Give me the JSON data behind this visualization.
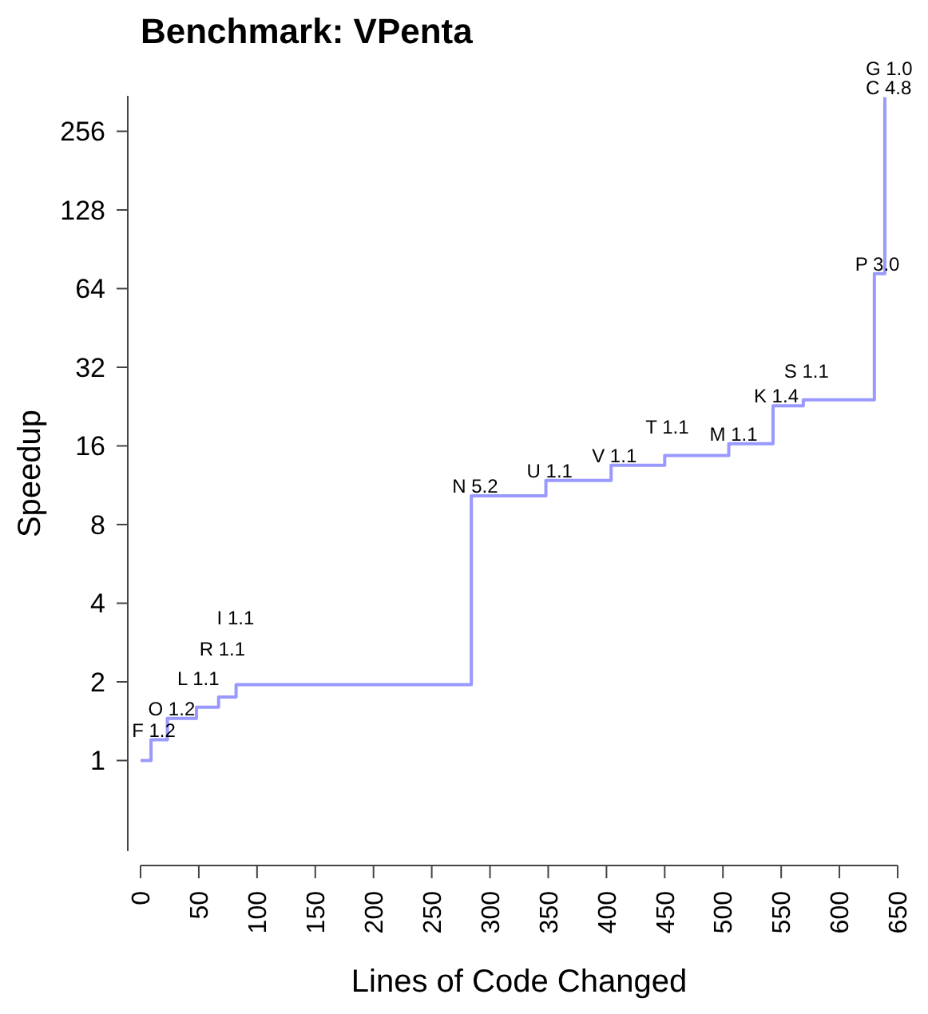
{
  "chart_data": {
    "type": "step",
    "title": "Benchmark: VPenta",
    "xlabel": "Lines of Code Changed",
    "ylabel": "Speedup",
    "log": true,
    "grid": false,
    "marker": "none",
    "line_style": "solid",
    "series": [
      {
        "color": "#9999ff",
        "x": [
          0,
          9,
          23,
          48,
          67,
          82,
          284,
          348,
          404,
          450,
          505,
          543,
          569,
          630,
          639
        ],
        "values": [
          1,
          1.2,
          1.45,
          1.6,
          1.75,
          1.95,
          10.3,
          11.8,
          13.5,
          14.7,
          16.3,
          22.8,
          24,
          73,
          346
        ]
      }
    ],
    "xlim": [
      0,
      650
    ],
    "xticks": [
      0,
      50,
      100,
      150,
      200,
      250,
      300,
      350,
      400,
      450,
      500,
      550,
      600,
      650
    ],
    "ylim": [
      0.45,
      350
    ],
    "yticks": [
      1,
      2,
      4,
      8,
      16,
      32,
      64,
      128,
      256
    ],
    "annotations": [
      {
        "text": "F 1.2",
        "x": 9,
        "y": 1.2
      },
      {
        "text": "O 1.2",
        "x": 23,
        "y": 1.45
      },
      {
        "text": "L 1.1",
        "x": 48,
        "y": 1.6
      },
      {
        "text": "R 1.1",
        "x": 67,
        "y": 1.75
      },
      {
        "text": "I 1.1",
        "x": 82,
        "y": 1.95
      },
      {
        "text": "N 5.2",
        "x": 284,
        "y": 10.3
      },
      {
        "text": "U 1.1",
        "x": 348,
        "y": 11.8
      },
      {
        "text": "V 1.1",
        "x": 404,
        "y": 13.5
      },
      {
        "text": "T 1.1",
        "x": 450,
        "y": 14.7
      },
      {
        "text": "M 1.1",
        "x": 505,
        "y": 16.3
      },
      {
        "text": "K 1.4",
        "x": 543,
        "y": 22.8
      },
      {
        "text": "S 1.1",
        "x": 569,
        "y": 24
      },
      {
        "text": "P 3.0",
        "x": 630,
        "y": 73
      },
      {
        "text": "C 4.8",
        "x": 639,
        "y": 346
      },
      {
        "text": "G 1.0",
        "x": 639,
        "y": 346
      }
    ]
  }
}
